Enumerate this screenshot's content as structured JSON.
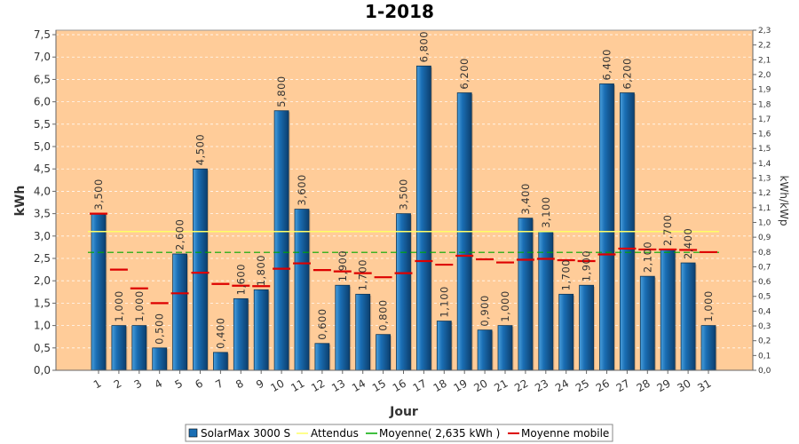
{
  "chart_data": {
    "type": "bar",
    "title": "1-2018",
    "xlabel": "Jour",
    "ylabel": "kWh",
    "y2label": "kWh/kWp",
    "ylim": [
      0,
      7.6
    ],
    "y2lim": [
      0,
      2.3
    ],
    "yticks": [
      "0,0",
      "0,5",
      "1,0",
      "1,5",
      "2,0",
      "2,5",
      "3,0",
      "3,5",
      "4,0",
      "4,5",
      "5,0",
      "5,5",
      "6,0",
      "6,5",
      "7,0",
      "7,5"
    ],
    "y2ticks": [
      "0,0",
      "0,1",
      "0,2",
      "0,3",
      "0,4",
      "0,5",
      "0,6",
      "0,7",
      "0,8",
      "0,9",
      "1,0",
      "1,1",
      "1,2",
      "1,3",
      "1,4",
      "1,5",
      "1,6",
      "1,7",
      "1,8",
      "1,9",
      "2,0",
      "2,1",
      "2,2",
      "2,3"
    ],
    "categories": [
      "1",
      "2",
      "3",
      "4",
      "5",
      "6",
      "7",
      "8",
      "9",
      "10",
      "11",
      "12",
      "13",
      "14",
      "15",
      "16",
      "17",
      "18",
      "19",
      "20",
      "21",
      "22",
      "23",
      "24",
      "25",
      "26",
      "27",
      "28",
      "29",
      "30",
      "31"
    ],
    "series": [
      {
        "name": "SolarMax 3000 S",
        "kind": "bar",
        "values": [
          3.5,
          1.0,
          1.0,
          0.5,
          2.6,
          4.5,
          0.4,
          1.6,
          1.8,
          5.8,
          3.6,
          0.6,
          1.9,
          1.7,
          0.8,
          3.5,
          6.8,
          1.1,
          6.2,
          0.9,
          1.0,
          3.4,
          3.1,
          1.7,
          1.9,
          6.4,
          6.2,
          2.1,
          2.7,
          2.4,
          1.0
        ],
        "labels": [
          "3,500",
          "1,000",
          "1,000",
          "0,500",
          "2,600",
          "4,500",
          "0,400",
          "1,600",
          "1,800",
          "5,800",
          "3,600",
          "0,600",
          "1,900",
          "1,700",
          "0,800",
          "3,500",
          "6,800",
          "1,100",
          "6,200",
          "0,900",
          "1,000",
          "3,400",
          "3,100",
          "1,700",
          "1,900",
          "6,400",
          "6,200",
          "2,100",
          "2,700",
          "2,400",
          "1,000"
        ]
      },
      {
        "name": "Attendus",
        "kind": "line",
        "value": 3.1
      },
      {
        "name": "Moyenne( 2,635 kWh )",
        "kind": "line",
        "value": 2.635
      },
      {
        "name": "Moyenne mobile",
        "kind": "marker",
        "values": [
          3.5,
          2.25,
          1.83,
          1.5,
          1.72,
          2.18,
          1.93,
          1.89,
          1.88,
          2.27,
          2.39,
          2.24,
          2.21,
          2.17,
          2.08,
          2.17,
          2.44,
          2.36,
          2.56,
          2.48,
          2.41,
          2.47,
          2.49,
          2.46,
          2.44,
          2.59,
          2.72,
          2.7,
          2.7,
          2.69,
          2.64
        ]
      }
    ],
    "colors": {
      "plot_bg": "#FFCC99",
      "bar": "#1A6EB4",
      "bar_light": "#4BA0DC",
      "bar_dark": "#0C3F6E",
      "attendus": "#FFFF66",
      "moyenne": "#00AA00",
      "mobile": "#DD0000"
    },
    "grid": true,
    "legend_position": "bottom"
  }
}
